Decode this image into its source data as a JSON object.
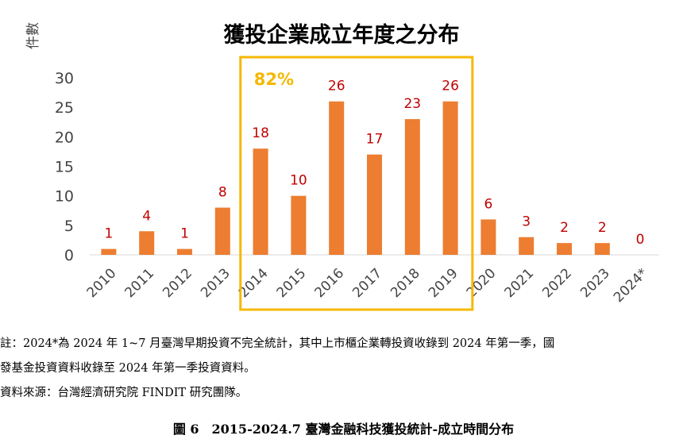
{
  "chart_data": {
    "type": "bar",
    "title": "獲投企業成立年度之分布",
    "ylabel": "件數",
    "xlabel": "",
    "categories": [
      "2010",
      "2011",
      "2012",
      "2013",
      "2014",
      "2015",
      "2016",
      "2017",
      "2018",
      "2019",
      "2020",
      "2021",
      "2022",
      "2023",
      "2024*"
    ],
    "values": [
      1,
      4,
      1,
      8,
      18,
      10,
      26,
      17,
      23,
      26,
      6,
      3,
      2,
      2,
      0
    ],
    "ylim": [
      0,
      30
    ],
    "yticks": [
      0,
      5,
      10,
      15,
      20,
      25,
      30
    ],
    "grid": false,
    "legend": "none",
    "colors": {
      "bar": "#ed7d31",
      "data_label": "#c00000",
      "highlight_box": "#f5b800",
      "annotation": "#f5b800"
    },
    "annotation": {
      "text": "82%",
      "range": [
        "2014",
        "2019"
      ]
    }
  },
  "notes": {
    "line1": "註：2024*為 2024 年 1~7 月臺灣早期投資不完全統計，其中上市櫃企業轉投資收錄到 2024 年第一季，國",
    "line2": "發基金投資資料收錄至 2024 年第一季投資資料。",
    "source": "資料來源：台灣經濟研究院 FINDIT 研究團隊。"
  },
  "caption": "圖 6　2015-2024.7 臺灣金融科技獲投統計-成立時間分布"
}
